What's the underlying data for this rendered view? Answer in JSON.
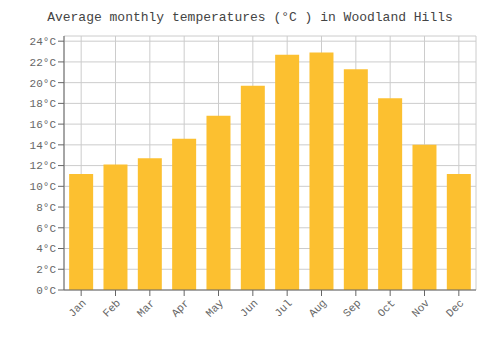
{
  "chart_data": {
    "type": "bar",
    "title": "Average monthly temperatures (°C ) in Woodland Hills",
    "categories": [
      "Jan",
      "Feb",
      "Mar",
      "Apr",
      "May",
      "Jun",
      "Jul",
      "Aug",
      "Sep",
      "Oct",
      "Nov",
      "Dec"
    ],
    "values": [
      11.2,
      12.1,
      12.7,
      14.6,
      16.8,
      19.7,
      22.7,
      22.9,
      21.3,
      18.5,
      14.0,
      11.2
    ],
    "color": "#FCC030",
    "ylim": [
      0,
      24.5
    ],
    "yticks": [
      {
        "value": 0,
        "label": "0°C"
      },
      {
        "value": 2,
        "label": "2°C"
      },
      {
        "value": 4,
        "label": "4°C"
      },
      {
        "value": 6,
        "label": "6°C"
      },
      {
        "value": 8,
        "label": "8°C"
      },
      {
        "value": 10,
        "label": "10°C"
      },
      {
        "value": 12,
        "label": "12°C"
      },
      {
        "value": 14,
        "label": "14°C"
      },
      {
        "value": 16,
        "label": "16°C"
      },
      {
        "value": 18,
        "label": "18°C"
      },
      {
        "value": 20,
        "label": "20°C"
      },
      {
        "value": 22,
        "label": "22°C"
      },
      {
        "value": 24,
        "label": "24°C"
      }
    ],
    "grid": true
  }
}
